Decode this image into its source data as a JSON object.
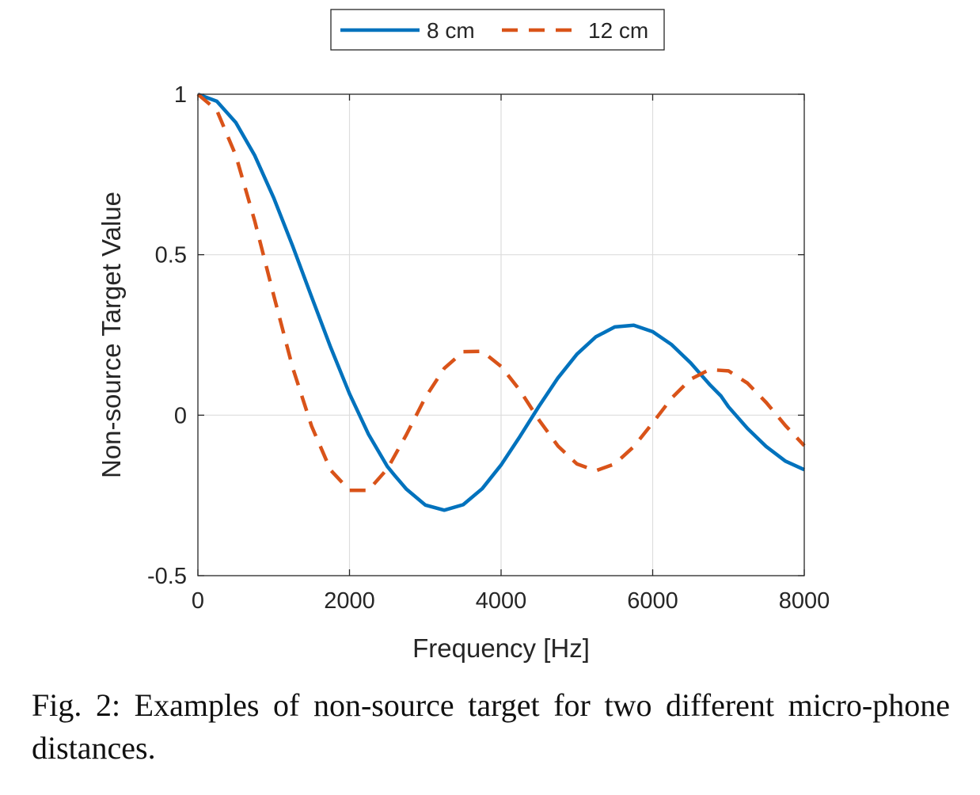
{
  "chart_data": {
    "type": "line",
    "title": "",
    "xlabel": "Frequency [Hz]",
    "ylabel": "Non-source Target Value",
    "xlim": [
      0,
      8000
    ],
    "ylim": [
      -0.5,
      1
    ],
    "xticks": [
      0,
      2000,
      4000,
      6000,
      8000
    ],
    "yticks": [
      -0.5,
      0,
      0.5,
      1
    ],
    "xtick_labels": [
      "0",
      "2000",
      "4000",
      "6000",
      "8000"
    ],
    "ytick_labels": [
      "-0.5",
      "0",
      "0.5",
      "1"
    ],
    "grid": true,
    "legend_position": "top-center, outside plot, horizontal",
    "series": [
      {
        "name": "8 cm",
        "color": "#0072BD",
        "style": "solid",
        "x": [
          0,
          250,
          500,
          750,
          1000,
          1250,
          1500,
          1750,
          2000,
          2250,
          2500,
          2600,
          2750,
          3000,
          3250,
          3500,
          3750,
          4000,
          4250,
          4500,
          4750,
          5000,
          5250,
          5500,
          5750,
          6000,
          6250,
          6500,
          6750,
          6900,
          7000,
          7250,
          7500,
          7750,
          8000
        ],
        "y": [
          1.0,
          0.978,
          0.912,
          0.809,
          0.677,
          0.527,
          0.369,
          0.212,
          0.067,
          -0.059,
          -0.16,
          -0.189,
          -0.23,
          -0.28,
          -0.296,
          -0.279,
          -0.229,
          -0.155,
          -0.066,
          0.028,
          0.116,
          0.19,
          0.244,
          0.275,
          0.28,
          0.26,
          0.22,
          0.163,
          0.096,
          0.06,
          0.026,
          -0.041,
          -0.098,
          -0.143,
          -0.17
        ]
      },
      {
        "name": "12 cm",
        "color": "#D95319",
        "style": "dashed",
        "x": [
          0,
          250,
          500,
          750,
          1000,
          1250,
          1500,
          1750,
          2000,
          2250,
          2500,
          2750,
          3000,
          3250,
          3500,
          3750,
          4000,
          4250,
          4500,
          4750,
          5000,
          5250,
          5500,
          5750,
          6000,
          6250,
          6500,
          6750,
          7000,
          7250,
          7500,
          7750,
          8000
        ],
        "y": [
          1.0,
          0.95,
          0.809,
          0.605,
          0.373,
          0.148,
          -0.034,
          -0.171,
          -0.234,
          -0.234,
          -0.167,
          -0.061,
          0.055,
          0.146,
          0.198,
          0.199,
          0.152,
          0.077,
          -0.015,
          -0.096,
          -0.152,
          -0.173,
          -0.152,
          -0.098,
          -0.024,
          0.053,
          0.112,
          0.142,
          0.138,
          0.1,
          0.039,
          -0.032,
          -0.095
        ]
      }
    ]
  },
  "caption": "Fig. 2: Examples of non-source target for two different micro-phone distances."
}
